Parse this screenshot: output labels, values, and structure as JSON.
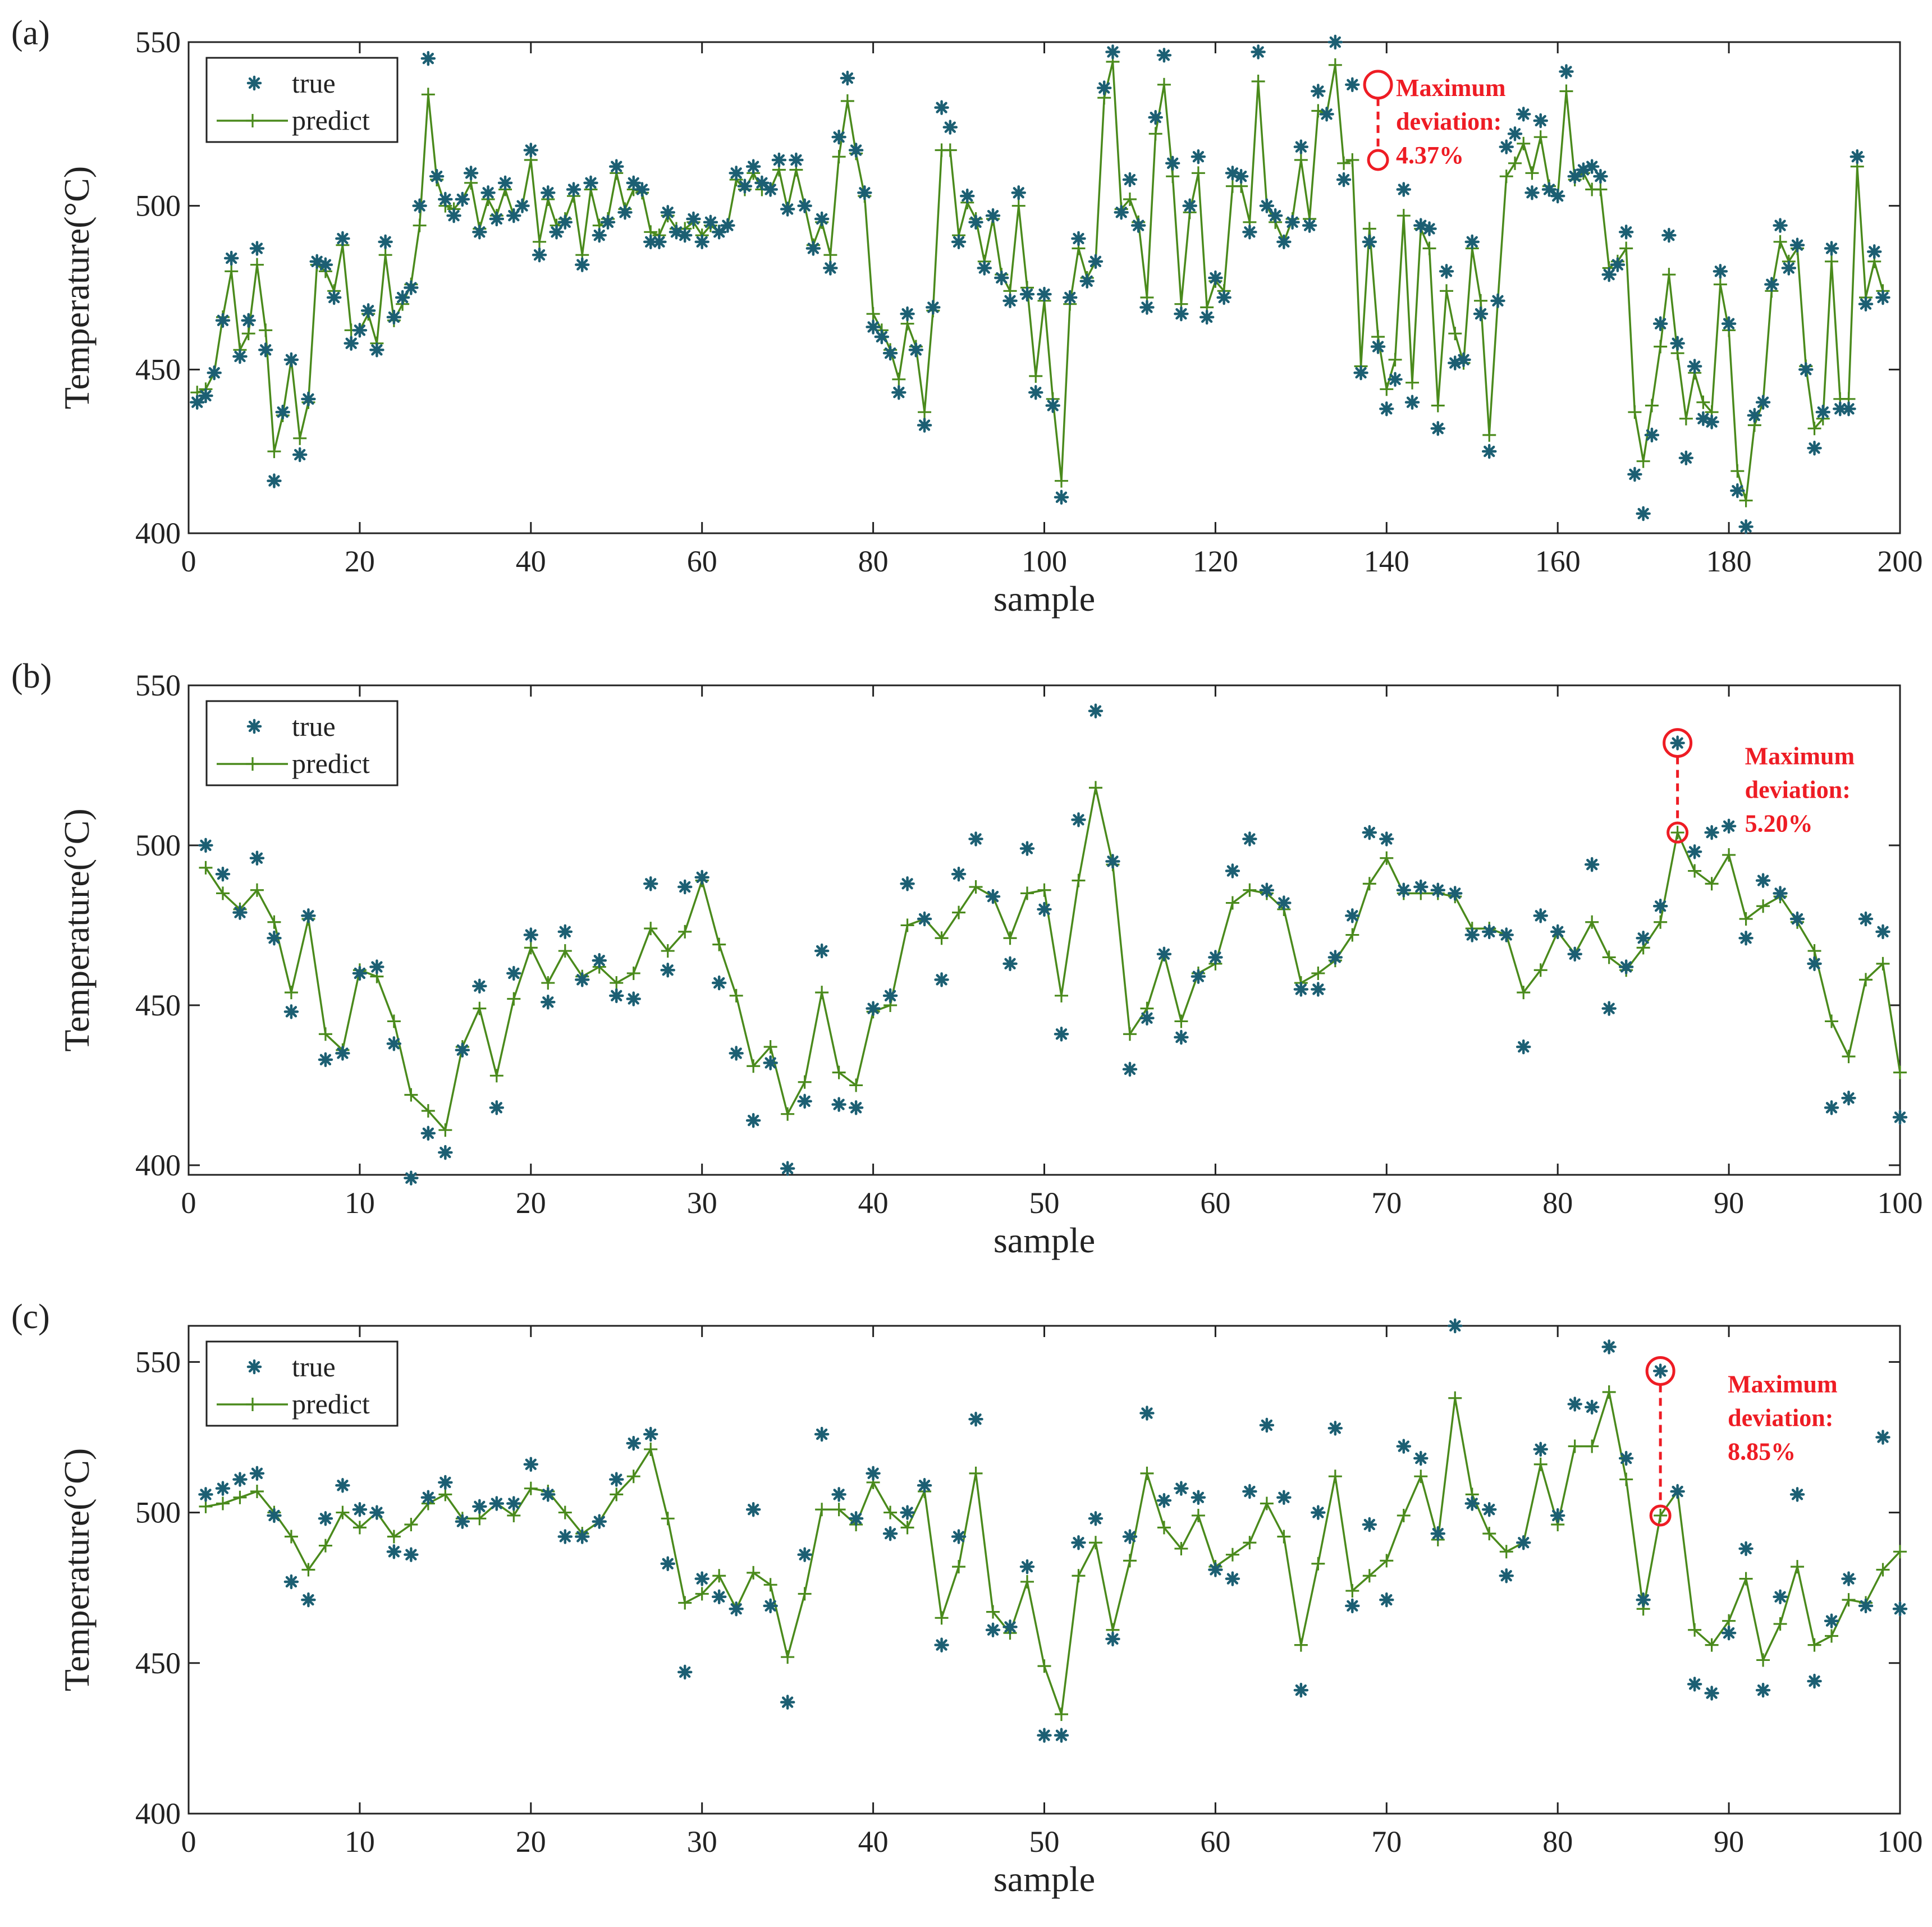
{
  "colors": {
    "true_marker": "#1c5f73",
    "predict_line": "#4a8a1c",
    "annotation": "#ee1c24",
    "axis": "#222222"
  },
  "chart_data": [
    {
      "panel_label": "(a)",
      "type": "line",
      "xlabel": "sample",
      "ylabel": "Temperature(°C)",
      "xlim": [
        0,
        200
      ],
      "ylim": [
        400,
        550
      ],
      "xticks": [
        0,
        20,
        40,
        60,
        80,
        100,
        120,
        140,
        160,
        180,
        200
      ],
      "yticks": [
        400,
        450,
        500,
        550
      ],
      "legend": {
        "position": "top-left",
        "entries": [
          "true",
          "predict"
        ]
      },
      "series": [
        {
          "name": "true",
          "style": "asterisk",
          "values": [
            440,
            442,
            449,
            465,
            484,
            454,
            465,
            487,
            456,
            416,
            437,
            453,
            424,
            441,
            483,
            482,
            472,
            490,
            458,
            462,
            468,
            456,
            489,
            466,
            472,
            475,
            500,
            545,
            509,
            502,
            497,
            502,
            510,
            492,
            504,
            496,
            507,
            497,
            500,
            517,
            485,
            504,
            492,
            495,
            505,
            482,
            507,
            491,
            495,
            512,
            498,
            507,
            505,
            489,
            489,
            498,
            492,
            491,
            496,
            489,
            495,
            492,
            494,
            510,
            506,
            512,
            507,
            505,
            514,
            499,
            514,
            500,
            487,
            496,
            481,
            521,
            539,
            517,
            504,
            463,
            460,
            455,
            443,
            467,
            456,
            433,
            469,
            530,
            524,
            489,
            503,
            495,
            481,
            497,
            478,
            471,
            504,
            473,
            443,
            473,
            439,
            411,
            472,
            490,
            477,
            483,
            536,
            547,
            498,
            508,
            494,
            469,
            527,
            546,
            513,
            467,
            500,
            515,
            466,
            478,
            472,
            510,
            509,
            492,
            547,
            500,
            497,
            489,
            495,
            518,
            494,
            535,
            528,
            550,
            508,
            537,
            449,
            489,
            457,
            438,
            447,
            505,
            440,
            494,
            493,
            432,
            480,
            452,
            453,
            489,
            467,
            425,
            471,
            518,
            522,
            528,
            504,
            526,
            505,
            503,
            541,
            509,
            511,
            512,
            509,
            479,
            482,
            492,
            418,
            406,
            430,
            464,
            491,
            458,
            423,
            451,
            435,
            434,
            480,
            464,
            413,
            402,
            436,
            440,
            476,
            494,
            481,
            488,
            450,
            426,
            437,
            487,
            438,
            438,
            515,
            470,
            486,
            472
          ],
          "x_start": 1
        },
        {
          "name": "predict",
          "style": "line+plus",
          "values": [
            443,
            444,
            449,
            466,
            480,
            456,
            461,
            482,
            462,
            425,
            436,
            453,
            429,
            440,
            482,
            480,
            474,
            488,
            462,
            462,
            467,
            458,
            485,
            465,
            470,
            476,
            494,
            534,
            508,
            500,
            499,
            502,
            507,
            493,
            502,
            497,
            505,
            497,
            500,
            514,
            489,
            502,
            494,
            496,
            503,
            485,
            505,
            494,
            496,
            510,
            499,
            505,
            504,
            492,
            491,
            497,
            493,
            493,
            495,
            491,
            494,
            492,
            494,
            508,
            505,
            510,
            505,
            505,
            511,
            499,
            511,
            500,
            488,
            495,
            485,
            515,
            532,
            516,
            503,
            467,
            462,
            456,
            447,
            464,
            457,
            437,
            468,
            517,
            517,
            491,
            501,
            496,
            483,
            496,
            479,
            474,
            500,
            475,
            448,
            471,
            441,
            416,
            470,
            487,
            478,
            483,
            533,
            544,
            499,
            502,
            495,
            472,
            522,
            537,
            509,
            470,
            498,
            510,
            469,
            477,
            474,
            506,
            506,
            495,
            538,
            500,
            495,
            489,
            496,
            514,
            496,
            529,
            528,
            543,
            513,
            514,
            451,
            493,
            460,
            444,
            453,
            497,
            446,
            493,
            487,
            439,
            474,
            461,
            452,
            487,
            471,
            430,
            471,
            509,
            513,
            519,
            510,
            521,
            506,
            503,
            535,
            508,
            510,
            505,
            505,
            481,
            483,
            487,
            437,
            422,
            439,
            457,
            479,
            455,
            435,
            449,
            440,
            437,
            476,
            462,
            419,
            410,
            433,
            440,
            474,
            489,
            483,
            487,
            451,
            432,
            435,
            483,
            441,
            441,
            512,
            472,
            483,
            474
          ],
          "x_start": 1
        }
      ],
      "annotation": {
        "x": 139,
        "true_value": 537,
        "predict_value": 514,
        "text_lines": [
          "Maximum",
          "deviation:",
          "4.37%"
        ]
      }
    },
    {
      "panel_label": "(b)",
      "type": "line",
      "xlabel": "sample",
      "ylabel": "Temperature(°C)",
      "xlim": [
        0,
        100
      ],
      "ylim": [
        397,
        550
      ],
      "xticks": [
        0,
        10,
        20,
        30,
        40,
        50,
        60,
        70,
        80,
        90,
        100
      ],
      "yticks": [
        400,
        450,
        500,
        550
      ],
      "legend": {
        "position": "top-left",
        "entries": [
          "true",
          "predict"
        ]
      },
      "series": [
        {
          "name": "true",
          "style": "asterisk",
          "values": [
            500,
            491,
            479,
            496,
            471,
            448,
            478,
            433,
            435,
            460,
            462,
            438,
            396,
            410,
            404,
            436,
            456,
            418,
            460,
            472,
            451,
            473,
            458,
            464,
            453,
            452,
            488,
            461,
            487,
            490,
            457,
            435,
            414,
            432,
            399,
            420,
            467,
            419,
            418,
            449,
            453,
            488,
            477,
            458,
            491,
            502,
            484,
            463,
            499,
            480,
            441,
            508,
            542,
            495,
            430,
            446,
            466,
            440,
            459,
            465,
            492,
            502,
            486,
            482,
            455,
            455,
            465,
            478,
            504,
            502,
            486,
            487,
            486,
            485,
            472,
            473,
            472,
            437,
            478,
            473,
            466,
            494,
            449,
            462,
            471,
            481,
            532,
            498,
            504,
            506,
            471,
            489,
            485,
            477,
            463,
            418,
            421,
            477,
            473,
            415
          ],
          "x_start": 1
        },
        {
          "name": "predict",
          "style": "line+plus",
          "values": [
            493,
            485,
            480,
            486,
            476,
            454,
            477,
            441,
            436,
            461,
            459,
            445,
            422,
            417,
            411,
            437,
            449,
            428,
            452,
            468,
            457,
            467,
            459,
            462,
            457,
            460,
            474,
            467,
            473,
            489,
            469,
            453,
            431,
            437,
            416,
            426,
            454,
            429,
            425,
            448,
            450,
            475,
            477,
            471,
            479,
            487,
            484,
            471,
            485,
            486,
            453,
            489,
            518,
            494,
            441,
            449,
            466,
            445,
            460,
            463,
            482,
            486,
            485,
            480,
            457,
            460,
            464,
            472,
            488,
            496,
            485,
            485,
            485,
            484,
            474,
            474,
            472,
            454,
            461,
            473,
            466,
            476,
            465,
            461,
            468,
            476,
            504,
            492,
            488,
            497,
            477,
            481,
            484,
            476,
            467,
            445,
            434,
            458,
            463,
            429
          ],
          "x_start": 1
        }
      ],
      "annotation": {
        "x": 87,
        "true_value": 532,
        "predict_value": 504,
        "text_lines": [
          "Maximum",
          "deviation:",
          "5.20%"
        ]
      }
    },
    {
      "panel_label": "(c)",
      "type": "line",
      "xlabel": "sample",
      "ylabel": "Temperature(°C)",
      "xlim": [
        0,
        100
      ],
      "ylim": [
        400,
        562
      ],
      "xticks": [
        0,
        10,
        20,
        30,
        40,
        50,
        60,
        70,
        80,
        90,
        100
      ],
      "yticks": [
        400,
        450,
        500,
        550
      ],
      "legend": {
        "position": "top-left",
        "entries": [
          "true",
          "predict"
        ]
      },
      "series": [
        {
          "name": "true",
          "style": "asterisk",
          "values": [
            506,
            508,
            511,
            513,
            499,
            477,
            471,
            498,
            509,
            501,
            500,
            487,
            486,
            505,
            510,
            497,
            502,
            503,
            503,
            516,
            506,
            492,
            492,
            497,
            511,
            523,
            526,
            483,
            447,
            478,
            472,
            468,
            501,
            469,
            437,
            486,
            526,
            506,
            498,
            513,
            493,
            500,
            509,
            456,
            492,
            531,
            461,
            462,
            482,
            426,
            426,
            490,
            498,
            458,
            492,
            533,
            504,
            508,
            505,
            481,
            478,
            507,
            529,
            505,
            441,
            500,
            528,
            469,
            496,
            471,
            522,
            518,
            493,
            562,
            503,
            501,
            479,
            490,
            521,
            499,
            536,
            535,
            555,
            518,
            471,
            547,
            507,
            443,
            440,
            460,
            488,
            441,
            472,
            506,
            444,
            464,
            478,
            469,
            525,
            468
          ],
          "x_start": 1
        },
        {
          "name": "predict",
          "style": "line+plus",
          "values": [
            502,
            503,
            505,
            507,
            500,
            492,
            481,
            489,
            500,
            495,
            500,
            492,
            496,
            503,
            506,
            498,
            498,
            503,
            499,
            508,
            507,
            500,
            493,
            497,
            506,
            512,
            521,
            498,
            470,
            473,
            479,
            468,
            480,
            476,
            452,
            473,
            501,
            501,
            496,
            510,
            500,
            495,
            507,
            465,
            482,
            513,
            467,
            460,
            477,
            449,
            433,
            479,
            490,
            461,
            484,
            513,
            495,
            488,
            499,
            482,
            486,
            490,
            503,
            492,
            456,
            483,
            512,
            474,
            479,
            484,
            499,
            512,
            491,
            538,
            506,
            493,
            487,
            490,
            516,
            496,
            522,
            522,
            540,
            511,
            468,
            499,
            507,
            461,
            456,
            464,
            478,
            451,
            463,
            482,
            456,
            459,
            471,
            470,
            481,
            487
          ],
          "x_start": 1
        }
      ],
      "annotation": {
        "x": 86,
        "true_value": 547,
        "predict_value": 499,
        "text_lines": [
          "Maximum",
          "deviation:",
          "8.85%"
        ]
      }
    }
  ]
}
